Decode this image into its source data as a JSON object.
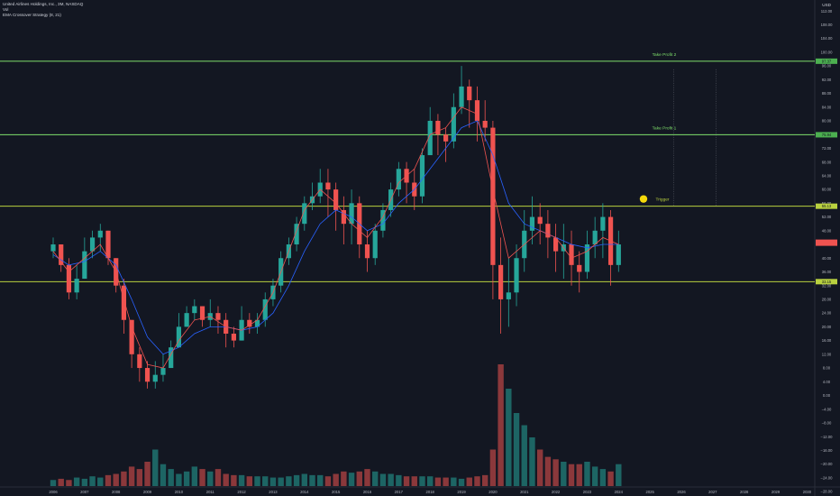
{
  "header": {
    "symbol_line": "United Airlines Holdings, Inc., 3M, NASDAQ",
    "volume_label": "Vol",
    "strategy_label": "EMA Crossover Strategy (8, 21)",
    "currency": "USD"
  },
  "colors": {
    "background": "#131722",
    "up": "#26a69a",
    "down": "#ef5350",
    "ema_fast": "#ef5350",
    "ema_slow": "#2962ff",
    "level_line": "#b9d13f",
    "take_profit_line": "#7fe06b"
  },
  "levels": [
    {
      "label": "Take Profit 2",
      "price": 97.37,
      "tag": "97.37"
    },
    {
      "label": "Take Profit 1",
      "price": 75.94,
      "tag": "75.94"
    },
    {
      "label": "Trigger",
      "price": 55.13,
      "tag": "55.13"
    },
    {
      "label": "",
      "price": 33.15,
      "tag": "33.15"
    }
  ],
  "last_price_tag": "",
  "trigger_icon": "smiley-icon",
  "chart_data": {
    "type": "candlestick",
    "title": "United Airlines Holdings, Inc., 3M, NASDAQ",
    "xlabel": "",
    "ylabel": "USD",
    "ylim": [
      -30,
      120
    ],
    "x_ticks": [
      "2006",
      "2007",
      "2008",
      "2009",
      "2010",
      "2011",
      "2012",
      "2013",
      "2014",
      "2015",
      "2016",
      "2017",
      "2018",
      "2019",
      "2020",
      "2021",
      "2022",
      "2023",
      "2024",
      "2025",
      "2026",
      "2027",
      "2028",
      "2029",
      "2030"
    ],
    "y_ticks": [
      "112.00",
      "108.00",
      "104.00",
      "100.00",
      "96.00",
      "92.00",
      "88.00",
      "84.00",
      "80.00",
      "76.00",
      "72.00",
      "68.00",
      "64.00",
      "60.00",
      "56.00",
      "52.00",
      "48.00",
      "44.00",
      "40.00",
      "36.00",
      "32.00",
      "28.00",
      "24.00",
      "20.00",
      "16.00",
      "12.00",
      "8.00",
      "4.00",
      "0.00",
      "−4.00",
      "−8.00",
      "−12.00",
      "−16.00",
      "−20.00",
      "−24.00",
      "−28.00"
    ],
    "price_series": {
      "name": "",
      "x": [
        2006.0,
        2006.25,
        2006.5,
        2006.75,
        2007.0,
        2007.25,
        2007.5,
        2007.75,
        2008.0,
        2008.25,
        2008.5,
        2008.75,
        2009.0,
        2009.25,
        2009.5,
        2009.75,
        2010.0,
        2010.25,
        2010.5,
        2010.75,
        2011.0,
        2011.25,
        2011.5,
        2011.75,
        2012.0,
        2012.25,
        2012.5,
        2012.75,
        2013.0,
        2013.25,
        2013.5,
        2013.75,
        2014.0,
        2014.25,
        2014.5,
        2014.75,
        2015.0,
        2015.25,
        2015.5,
        2015.75,
        2016.0,
        2016.25,
        2016.5,
        2016.75,
        2017.0,
        2017.25,
        2017.5,
        2017.75,
        2018.0,
        2018.25,
        2018.5,
        2018.75,
        2019.0,
        2019.25,
        2019.5,
        2019.75,
        2020.0,
        2020.25,
        2020.5,
        2020.75,
        2021.0,
        2021.25,
        2021.5,
        2021.75,
        2022.0,
        2022.25,
        2022.5,
        2022.75,
        2023.0,
        2023.25,
        2023.5,
        2023.75,
        2024.0
      ],
      "close": [
        44,
        38,
        30,
        34,
        42,
        46,
        48,
        40,
        32,
        22,
        12,
        8,
        4,
        6,
        8,
        14,
        20,
        24,
        26,
        22,
        24,
        22,
        18,
        16,
        22,
        20,
        22,
        28,
        32,
        40,
        44,
        50,
        56,
        58,
        62,
        60,
        54,
        50,
        56,
        44,
        40,
        48,
        54,
        60,
        66,
        62,
        58,
        70,
        80,
        76,
        74,
        84,
        90,
        86,
        80,
        78,
        38,
        28,
        30,
        40,
        48,
        52,
        50,
        46,
        42,
        44,
        38,
        36,
        44,
        48,
        52,
        38,
        44
      ],
      "high": [
        46,
        44,
        40,
        38,
        46,
        48,
        50,
        48,
        40,
        34,
        22,
        14,
        10,
        10,
        12,
        16,
        24,
        26,
        28,
        26,
        28,
        26,
        24,
        20,
        26,
        24,
        24,
        30,
        34,
        42,
        46,
        52,
        58,
        62,
        66,
        66,
        62,
        58,
        60,
        58,
        48,
        50,
        56,
        62,
        68,
        68,
        66,
        72,
        84,
        82,
        78,
        88,
        96,
        92,
        90,
        86,
        80,
        46,
        40,
        44,
        54,
        58,
        56,
        54,
        50,
        50,
        48,
        42,
        48,
        52,
        56,
        54,
        48
      ],
      "low": [
        40,
        36,
        28,
        28,
        34,
        40,
        42,
        38,
        30,
        18,
        8,
        4,
        2,
        2,
        4,
        8,
        14,
        20,
        22,
        20,
        20,
        18,
        14,
        14,
        16,
        18,
        18,
        20,
        26,
        30,
        38,
        42,
        48,
        54,
        56,
        52,
        48,
        44,
        44,
        40,
        36,
        38,
        46,
        52,
        58,
        56,
        54,
        56,
        70,
        70,
        68,
        72,
        82,
        78,
        74,
        74,
        28,
        18,
        20,
        26,
        36,
        44,
        44,
        40,
        36,
        34,
        32,
        30,
        34,
        40,
        40,
        32,
        36
      ]
    },
    "ema_fast": {
      "name": "",
      "x": [
        2006.0,
        2006.5,
        2007.0,
        2007.5,
        2008.0,
        2008.5,
        2009.0,
        2009.5,
        2010.0,
        2010.5,
        2011.0,
        2011.5,
        2012.0,
        2012.5,
        2013.0,
        2013.5,
        2014.0,
        2014.5,
        2015.0,
        2015.5,
        2016.0,
        2016.5,
        2017.0,
        2017.5,
        2018.0,
        2018.5,
        2019.0,
        2019.5,
        2020.0,
        2020.5,
        2021.0,
        2021.5,
        2022.0,
        2022.5,
        2023.0,
        2023.5,
        2024.0
      ],
      "values": [
        42,
        36,
        40,
        44,
        36,
        20,
        9,
        8,
        16,
        22,
        23,
        20,
        19,
        22,
        30,
        42,
        54,
        60,
        56,
        50,
        46,
        52,
        62,
        66,
        76,
        78,
        84,
        82,
        60,
        40,
        44,
        48,
        46,
        40,
        42,
        46,
        44
      ]
    },
    "ema_slow": {
      "name": "",
      "x": [
        2006.0,
        2006.5,
        2007.0,
        2007.5,
        2008.0,
        2008.5,
        2009.0,
        2009.5,
        2010.0,
        2010.5,
        2011.0,
        2011.5,
        2012.0,
        2012.5,
        2013.0,
        2013.5,
        2014.0,
        2014.5,
        2015.0,
        2015.5,
        2016.0,
        2016.5,
        2017.0,
        2017.5,
        2018.0,
        2018.5,
        2019.0,
        2019.5,
        2020.0,
        2020.5,
        2021.0,
        2021.5,
        2022.0,
        2022.5,
        2023.0,
        2023.5,
        2024.0
      ],
      "values": [
        41,
        38,
        39,
        42,
        38,
        28,
        17,
        12,
        14,
        18,
        20,
        20,
        19,
        20,
        24,
        32,
        42,
        50,
        54,
        52,
        48,
        50,
        56,
        60,
        66,
        72,
        78,
        80,
        70,
        56,
        50,
        48,
        46,
        44,
        43,
        44,
        44
      ]
    },
    "volume_series": {
      "name": "Vol",
      "x": [
        2006.0,
        2006.25,
        2006.5,
        2006.75,
        2007.0,
        2007.25,
        2007.5,
        2007.75,
        2008.0,
        2008.25,
        2008.5,
        2008.75,
        2009.0,
        2009.25,
        2009.5,
        2009.75,
        2010.0,
        2010.25,
        2010.5,
        2010.75,
        2011.0,
        2011.25,
        2011.5,
        2011.75,
        2012.0,
        2012.25,
        2012.5,
        2012.75,
        2013.0,
        2013.25,
        2013.5,
        2013.75,
        2014.0,
        2014.25,
        2014.5,
        2014.75,
        2015.0,
        2015.25,
        2015.5,
        2015.75,
        2016.0,
        2016.25,
        2016.5,
        2016.75,
        2017.0,
        2017.25,
        2017.5,
        2017.75,
        2018.0,
        2018.25,
        2018.5,
        2018.75,
        2019.0,
        2019.25,
        2019.5,
        2019.75,
        2020.0,
        2020.25,
        2020.5,
        2020.75,
        2021.0,
        2021.25,
        2021.5,
        2021.75,
        2022.0,
        2022.25,
        2022.5,
        2022.75,
        2023.0,
        2023.25,
        2023.5,
        2023.75,
        2024.0
      ],
      "values": [
        5,
        6,
        5,
        7,
        6,
        8,
        7,
        9,
        10,
        12,
        16,
        14,
        20,
        30,
        18,
        14,
        10,
        12,
        16,
        14,
        12,
        14,
        10,
        9,
        9,
        8,
        8,
        8,
        7,
        7,
        8,
        9,
        10,
        9,
        9,
        8,
        10,
        12,
        11,
        12,
        14,
        12,
        10,
        10,
        9,
        8,
        8,
        8,
        8,
        7,
        7,
        7,
        6,
        7,
        8,
        9,
        30,
        100,
        80,
        60,
        50,
        40,
        30,
        24,
        22,
        20,
        18,
        18,
        20,
        16,
        14,
        12,
        18
      ]
    },
    "annotations": [
      "Take Profit 2",
      "Take Profit 1",
      "Trigger"
    ]
  }
}
